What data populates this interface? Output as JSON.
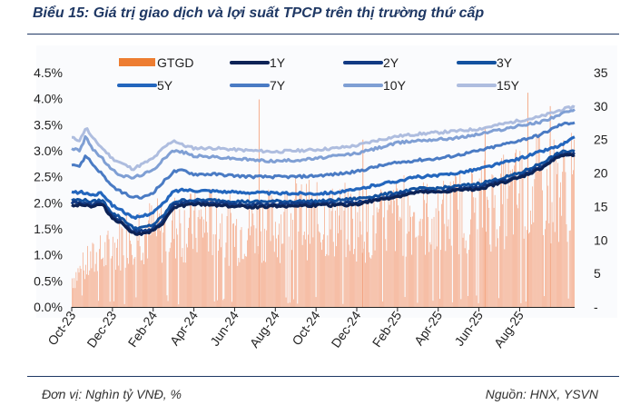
{
  "title": "Biểu 15: Giá trị giao dịch và lợi suất TPCP trên thị trường thứ cấp",
  "footer": {
    "unit": "Đơn vị: Nghìn tỷ VNĐ, %",
    "source": "Nguồn: HNX, YSVN"
  },
  "chart_data": {
    "type": "bar+line",
    "title": "Biểu 15: Giá trị giao dịch và lợi suất TPCP trên thị trường thứ cấp",
    "x_tick_labels": [
      "Oct-23",
      "Dec-23",
      "Feb-24",
      "Apr-24",
      "Jun-24",
      "Aug-24",
      "Oct-24",
      "Dec-24",
      "Feb-25",
      "Apr-25",
      "Jun-25",
      "Aug-25"
    ],
    "x_range": [
      0,
      24.7
    ],
    "y_left": {
      "label": "%",
      "range": [
        0,
        4.5
      ],
      "ticks": [
        "0.0%",
        "0.5%",
        "1.0%",
        "1.5%",
        "2.0%",
        "2.5%",
        "3.0%",
        "3.5%",
        "4.0%",
        "4.5%"
      ]
    },
    "y_right": {
      "label": "Nghìn tỷ VNĐ",
      "range": [
        0,
        35
      ],
      "ticks": [
        "-",
        "5",
        "10",
        "15",
        "20",
        "25",
        "30",
        "35"
      ]
    },
    "legend": [
      "GTGD",
      "1Y",
      "2Y",
      "3Y",
      "5Y",
      "7Y",
      "10Y",
      "15Y"
    ],
    "colors": {
      "GTGD": "#f4a582",
      "GTGD_legend": "#ed7d31",
      "1Y": "#0d2356",
      "2Y": "#123a83",
      "3Y": "#1352a0",
      "5Y": "#2366bd",
      "7Y": "#4a7bc4",
      "10Y": "#7f9fd4",
      "15Y": "#aebddf"
    },
    "bars": {
      "name": "GTGD",
      "axis": "right",
      "anchors": [
        [
          0,
          5
        ],
        [
          1,
          8
        ],
        [
          2,
          10
        ],
        [
          3,
          14
        ],
        [
          4,
          13
        ],
        [
          5,
          14
        ],
        [
          6,
          14
        ],
        [
          7,
          15
        ],
        [
          8,
          13
        ],
        [
          9,
          15
        ],
        [
          10,
          14
        ],
        [
          11,
          16
        ],
        [
          12,
          15
        ],
        [
          13,
          15
        ],
        [
          14,
          15
        ],
        [
          15,
          14
        ],
        [
          16,
          16
        ],
        [
          17,
          16
        ],
        [
          18,
          15
        ],
        [
          19,
          17
        ],
        [
          20,
          18
        ],
        [
          21,
          18
        ],
        [
          22,
          20
        ],
        [
          23,
          21
        ],
        [
          24,
          21
        ],
        [
          24.7,
          21
        ]
      ],
      "spikes": [
        [
          9.2,
          31
        ],
        [
          14.3,
          25
        ],
        [
          20.3,
          27
        ],
        [
          22.4,
          32
        ],
        [
          23.5,
          30
        ]
      ]
    },
    "series": [
      {
        "name": "1Y",
        "values": [
          [
            0,
            1.95
          ],
          [
            0.5,
            1.97
          ],
          [
            1,
            1.93
          ],
          [
            1.5,
            1.97
          ],
          [
            2,
            1.7
          ],
          [
            2.5,
            1.6
          ],
          [
            3,
            1.42
          ],
          [
            3.5,
            1.4
          ],
          [
            4,
            1.45
          ],
          [
            4.5,
            1.62
          ],
          [
            5,
            1.9
          ],
          [
            5.5,
            1.95
          ],
          [
            6,
            1.97
          ],
          [
            7,
            1.96
          ],
          [
            8,
            1.93
          ],
          [
            9,
            1.92
          ],
          [
            10,
            1.94
          ],
          [
            11,
            1.94
          ],
          [
            12,
            1.95
          ],
          [
            13,
            1.95
          ],
          [
            14,
            1.97
          ],
          [
            15,
            2.05
          ],
          [
            16,
            2.12
          ],
          [
            17,
            2.2
          ],
          [
            18,
            2.2
          ],
          [
            19,
            2.24
          ],
          [
            20,
            2.27
          ],
          [
            21,
            2.37
          ],
          [
            22,
            2.48
          ],
          [
            23,
            2.65
          ],
          [
            24,
            2.9
          ],
          [
            24.7,
            2.93
          ]
        ]
      },
      {
        "name": "2Y",
        "values": [
          [
            0,
            2.0
          ],
          [
            0.5,
            2.0
          ],
          [
            1,
            1.97
          ],
          [
            1.5,
            2.0
          ],
          [
            2,
            1.75
          ],
          [
            2.5,
            1.62
          ],
          [
            3,
            1.45
          ],
          [
            3.5,
            1.45
          ],
          [
            4,
            1.5
          ],
          [
            4.5,
            1.67
          ],
          [
            5,
            1.95
          ],
          [
            5.5,
            2.0
          ],
          [
            6,
            2.0
          ],
          [
            7,
            2.0
          ],
          [
            8,
            1.97
          ],
          [
            9,
            1.96
          ],
          [
            10,
            1.98
          ],
          [
            11,
            1.98
          ],
          [
            12,
            1.98
          ],
          [
            13,
            1.99
          ],
          [
            14,
            2.0
          ],
          [
            15,
            2.08
          ],
          [
            16,
            2.15
          ],
          [
            17,
            2.22
          ],
          [
            18,
            2.22
          ],
          [
            19,
            2.27
          ],
          [
            20,
            2.3
          ],
          [
            21,
            2.4
          ],
          [
            22,
            2.5
          ],
          [
            23,
            2.68
          ],
          [
            24,
            2.92
          ],
          [
            24.7,
            2.95
          ]
        ]
      },
      {
        "name": "3Y",
        "values": [
          [
            0,
            2.05
          ],
          [
            0.5,
            2.06
          ],
          [
            1,
            2.02
          ],
          [
            1.5,
            2.05
          ],
          [
            2,
            1.8
          ],
          [
            2.5,
            1.7
          ],
          [
            3,
            1.52
          ],
          [
            3.5,
            1.52
          ],
          [
            4,
            1.58
          ],
          [
            4.5,
            1.75
          ],
          [
            5,
            2.02
          ],
          [
            5.5,
            2.05
          ],
          [
            6,
            2.05
          ],
          [
            7,
            2.05
          ],
          [
            8,
            2.03
          ],
          [
            9,
            2.02
          ],
          [
            10,
            2.03
          ],
          [
            11,
            2.03
          ],
          [
            12,
            2.03
          ],
          [
            13,
            2.05
          ],
          [
            14,
            2.08
          ],
          [
            15,
            2.14
          ],
          [
            16,
            2.2
          ],
          [
            17,
            2.27
          ],
          [
            18,
            2.28
          ],
          [
            19,
            2.32
          ],
          [
            20,
            2.37
          ],
          [
            21,
            2.46
          ],
          [
            22,
            2.57
          ],
          [
            23,
            2.75
          ],
          [
            24,
            2.97
          ],
          [
            24.7,
            3.0
          ]
        ]
      },
      {
        "name": "5Y",
        "values": [
          [
            0,
            2.2
          ],
          [
            0.5,
            2.2
          ],
          [
            1,
            2.15
          ],
          [
            1.5,
            2.18
          ],
          [
            2,
            1.95
          ],
          [
            2.5,
            1.85
          ],
          [
            3,
            1.7
          ],
          [
            3.5,
            1.75
          ],
          [
            4,
            1.82
          ],
          [
            4.5,
            1.98
          ],
          [
            5,
            2.22
          ],
          [
            5.5,
            2.25
          ],
          [
            6,
            2.24
          ],
          [
            7,
            2.23
          ],
          [
            8,
            2.2
          ],
          [
            9,
            2.2
          ],
          [
            10,
            2.18
          ],
          [
            11,
            2.18
          ],
          [
            12,
            2.18
          ],
          [
            13,
            2.2
          ],
          [
            14,
            2.25
          ],
          [
            15,
            2.35
          ],
          [
            16,
            2.42
          ],
          [
            17,
            2.5
          ],
          [
            18,
            2.52
          ],
          [
            19,
            2.58
          ],
          [
            20,
            2.65
          ],
          [
            21,
            2.75
          ],
          [
            22,
            2.85
          ],
          [
            23,
            2.98
          ],
          [
            24,
            3.1
          ],
          [
            24.7,
            3.25
          ]
        ]
      },
      {
        "name": "7Y",
        "values": [
          [
            0,
            2.75
          ],
          [
            0.4,
            2.7
          ],
          [
            0.7,
            2.92
          ],
          [
            1,
            2.75
          ],
          [
            1.5,
            2.55
          ],
          [
            2,
            2.3
          ],
          [
            2.5,
            2.2
          ],
          [
            3,
            2.1
          ],
          [
            3.5,
            2.1
          ],
          [
            4,
            2.2
          ],
          [
            4.5,
            2.4
          ],
          [
            5,
            2.6
          ],
          [
            5.5,
            2.62
          ],
          [
            6,
            2.55
          ],
          [
            7,
            2.55
          ],
          [
            8,
            2.52
          ],
          [
            9,
            2.5
          ],
          [
            10,
            2.5
          ],
          [
            11,
            2.5
          ],
          [
            12,
            2.52
          ],
          [
            13,
            2.55
          ],
          [
            14,
            2.6
          ],
          [
            15,
            2.7
          ],
          [
            16,
            2.77
          ],
          [
            17,
            2.82
          ],
          [
            18,
            2.85
          ],
          [
            19,
            2.92
          ],
          [
            20,
            3.0
          ],
          [
            21,
            3.1
          ],
          [
            22,
            3.2
          ],
          [
            23,
            3.3
          ],
          [
            24,
            3.5
          ],
          [
            24.7,
            3.55
          ]
        ]
      },
      {
        "name": "10Y",
        "values": [
          [
            0,
            3.05
          ],
          [
            0.4,
            3.0
          ],
          [
            0.7,
            3.28
          ],
          [
            1,
            3.05
          ],
          [
            1.5,
            2.85
          ],
          [
            2,
            2.62
          ],
          [
            2.5,
            2.52
          ],
          [
            3,
            2.48
          ],
          [
            3.5,
            2.55
          ],
          [
            4,
            2.62
          ],
          [
            4.5,
            2.85
          ],
          [
            5,
            3.0
          ],
          [
            5.5,
            2.97
          ],
          [
            6,
            2.9
          ],
          [
            7,
            2.88
          ],
          [
            8,
            2.85
          ],
          [
            9,
            2.82
          ],
          [
            10,
            2.8
          ],
          [
            11,
            2.82
          ],
          [
            12,
            2.85
          ],
          [
            13,
            2.9
          ],
          [
            14,
            2.95
          ],
          [
            15,
            3.05
          ],
          [
            16,
            3.15
          ],
          [
            17,
            3.2
          ],
          [
            18,
            3.22
          ],
          [
            19,
            3.25
          ],
          [
            20,
            3.32
          ],
          [
            21,
            3.4
          ],
          [
            22,
            3.48
          ],
          [
            23,
            3.55
          ],
          [
            24,
            3.7
          ],
          [
            24.7,
            3.78
          ]
        ]
      },
      {
        "name": "15Y",
        "values": [
          [
            0,
            3.25
          ],
          [
            0.4,
            3.2
          ],
          [
            0.7,
            3.45
          ],
          [
            1,
            3.25
          ],
          [
            1.5,
            3.05
          ],
          [
            2,
            2.85
          ],
          [
            2.5,
            2.75
          ],
          [
            3,
            2.65
          ],
          [
            3.5,
            2.75
          ],
          [
            4,
            2.85
          ],
          [
            4.5,
            3.05
          ],
          [
            5,
            3.2
          ],
          [
            5.5,
            3.1
          ],
          [
            6,
            3.05
          ],
          [
            7,
            3.05
          ],
          [
            8,
            3.02
          ],
          [
            9,
            3.0
          ],
          [
            10,
            2.98
          ],
          [
            11,
            3.0
          ],
          [
            12,
            3.02
          ],
          [
            13,
            3.05
          ],
          [
            14,
            3.1
          ],
          [
            15,
            3.2
          ],
          [
            16,
            3.28
          ],
          [
            17,
            3.32
          ],
          [
            18,
            3.35
          ],
          [
            19,
            3.38
          ],
          [
            20,
            3.42
          ],
          [
            21,
            3.5
          ],
          [
            22,
            3.58
          ],
          [
            23,
            3.65
          ],
          [
            24,
            3.78
          ],
          [
            24.7,
            3.85
          ]
        ]
      }
    ]
  }
}
